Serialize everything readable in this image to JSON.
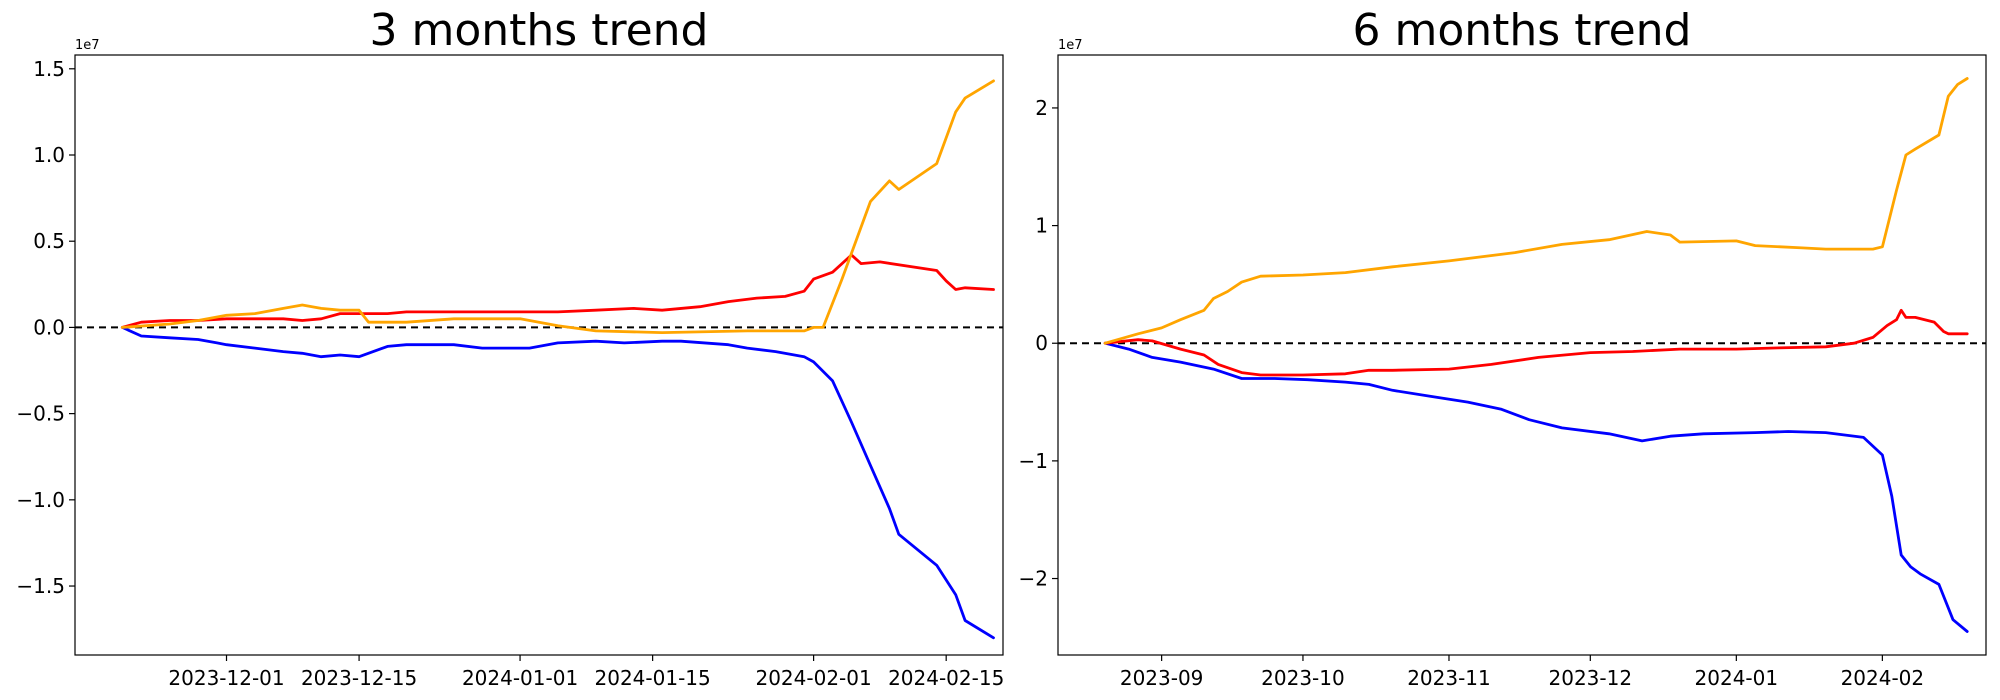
{
  "chart_data": [
    {
      "type": "line",
      "title": "3 months trend",
      "xlabel": "",
      "ylabel": "",
      "y_offset_label": "1e7",
      "x_axis": "date",
      "xlim": [
        "2023-11-15",
        "2024-02-21"
      ],
      "ylim": [
        -1.9,
        1.58
      ],
      "y_unit_multiplier": 10000000,
      "xticks": [
        "2023-12-01",
        "2023-12-15",
        "2024-01-01",
        "2024-01-15",
        "2024-02-01",
        "2024-02-15"
      ],
      "yticks": [
        -1.5,
        -1.0,
        -0.5,
        0.0,
        0.5,
        1.0,
        1.5
      ],
      "ytick_labels": [
        "−1.5",
        "−1.0",
        "−0.5",
        "0.0",
        "0.5",
        "1.0",
        "1.5"
      ],
      "reference_line": {
        "y": 0,
        "style": "dashed",
        "color": "#000000"
      },
      "grid": false,
      "series": [
        {
          "color": "#0000ff",
          "x": [
            "2023-11-20",
            "2023-11-22",
            "2023-11-25",
            "2023-11-28",
            "2023-11-30",
            "2023-12-01",
            "2023-12-04",
            "2023-12-07",
            "2023-12-09",
            "2023-12-11",
            "2023-12-13",
            "2023-12-15",
            "2023-12-18",
            "2023-12-20",
            "2023-12-22",
            "2023-12-25",
            "2023-12-28",
            "2023-12-30",
            "2024-01-02",
            "2024-01-05",
            "2024-01-09",
            "2024-01-12",
            "2024-01-16",
            "2024-01-18",
            "2024-01-23",
            "2024-01-25",
            "2024-01-28",
            "2024-01-31",
            "2024-02-01",
            "2024-02-03",
            "2024-02-05",
            "2024-02-07",
            "2024-02-09",
            "2024-02-10",
            "2024-02-14",
            "2024-02-16",
            "2024-02-17",
            "2024-02-20"
          ],
          "y": [
            0.0,
            -0.05,
            -0.06,
            -0.07,
            -0.09,
            -0.1,
            -0.12,
            -0.14,
            -0.15,
            -0.17,
            -0.16,
            -0.17,
            -0.11,
            -0.1,
            -0.1,
            -0.1,
            -0.12,
            -0.12,
            -0.12,
            -0.09,
            -0.08,
            -0.09,
            -0.08,
            -0.08,
            -0.1,
            -0.12,
            -0.14,
            -0.17,
            -0.2,
            -0.31,
            -0.55,
            -0.8,
            -1.05,
            -1.2,
            -1.38,
            -1.55,
            -1.7,
            -1.8
          ]
        },
        {
          "color": "#ff0000",
          "x": [
            "2023-11-20",
            "2023-11-22",
            "2023-11-25",
            "2023-11-28",
            "2023-12-01",
            "2023-12-04",
            "2023-12-07",
            "2023-12-09",
            "2023-12-11",
            "2023-12-13",
            "2023-12-15",
            "2023-12-18",
            "2023-12-20",
            "2023-12-25",
            "2024-01-01",
            "2024-01-05",
            "2024-01-09",
            "2024-01-13",
            "2024-01-16",
            "2024-01-20",
            "2024-01-23",
            "2024-01-26",
            "2024-01-29",
            "2024-01-31",
            "2024-02-01",
            "2024-02-03",
            "2024-02-05",
            "2024-02-06",
            "2024-02-08",
            "2024-02-14",
            "2024-02-15",
            "2024-02-16",
            "2024-02-17",
            "2024-02-20"
          ],
          "y": [
            0.0,
            0.03,
            0.04,
            0.04,
            0.05,
            0.05,
            0.05,
            0.04,
            0.05,
            0.08,
            0.08,
            0.08,
            0.09,
            0.09,
            0.09,
            0.09,
            0.1,
            0.11,
            0.1,
            0.12,
            0.15,
            0.17,
            0.18,
            0.21,
            0.28,
            0.32,
            0.42,
            0.37,
            0.38,
            0.33,
            0.27,
            0.22,
            0.23,
            0.22
          ]
        },
        {
          "color": "#ffa500",
          "x": [
            "2023-11-20",
            "2023-11-25",
            "2023-11-28",
            "2023-12-01",
            "2023-12-04",
            "2023-12-07",
            "2023-12-09",
            "2023-12-11",
            "2023-12-13",
            "2023-12-15",
            "2023-12-16",
            "2023-12-20",
            "2023-12-25",
            "2024-01-01",
            "2024-01-05",
            "2024-01-09",
            "2024-01-16",
            "2024-01-25",
            "2024-01-31",
            "2024-02-01",
            "2024-02-02",
            "2024-02-04",
            "2024-02-07",
            "2024-02-09",
            "2024-02-10",
            "2024-02-14",
            "2024-02-16",
            "2024-02-17",
            "2024-02-20"
          ],
          "y": [
            0.0,
            0.02,
            0.04,
            0.07,
            0.08,
            0.11,
            0.13,
            0.11,
            0.1,
            0.1,
            0.03,
            0.03,
            0.05,
            0.05,
            0.01,
            -0.02,
            -0.03,
            -0.02,
            -0.02,
            0.0,
            0.0,
            0.28,
            0.73,
            0.85,
            0.8,
            0.95,
            1.25,
            1.33,
            1.43
          ]
        }
      ]
    },
    {
      "type": "line",
      "title": "6 months trend",
      "xlabel": "",
      "ylabel": "",
      "y_offset_label": "1e7",
      "x_axis": "date",
      "xlim": [
        "2023-08-10",
        "2024-02-23"
      ],
      "ylim": [
        -2.65,
        2.45
      ],
      "y_unit_multiplier": 10000000,
      "xticks": [
        "2023-09-01",
        "2023-10-01",
        "2023-11-01",
        "2023-12-01",
        "2024-01-01",
        "2024-02-01"
      ],
      "xtick_labels": [
        "2023-09",
        "2023-10",
        "2023-11",
        "2023-12",
        "2024-01",
        "2024-02"
      ],
      "yticks": [
        -2,
        -1,
        0,
        1,
        2
      ],
      "ytick_labels": [
        "−2",
        "−1",
        "0",
        "1",
        "2"
      ],
      "reference_line": {
        "y": 0,
        "style": "dashed",
        "color": "#000000"
      },
      "grid": false,
      "series": [
        {
          "color": "#0000ff",
          "x": [
            "2023-08-20",
            "2023-08-25",
            "2023-08-30",
            "2023-09-05",
            "2023-09-12",
            "2023-09-18",
            "2023-09-25",
            "2023-10-02",
            "2023-10-10",
            "2023-10-15",
            "2023-10-20",
            "2023-10-28",
            "2023-11-05",
            "2023-11-12",
            "2023-11-18",
            "2023-11-25",
            "2023-12-05",
            "2023-12-12",
            "2023-12-18",
            "2023-12-25",
            "2024-01-05",
            "2024-01-12",
            "2024-01-20",
            "2024-01-28",
            "2024-02-01",
            "2024-02-03",
            "2024-02-05",
            "2024-02-07",
            "2024-02-09",
            "2024-02-13",
            "2024-02-16",
            "2024-02-19"
          ],
          "y": [
            0.0,
            -0.05,
            -0.12,
            -0.16,
            -0.22,
            -0.3,
            -0.3,
            -0.31,
            -0.33,
            -0.35,
            -0.4,
            -0.45,
            -0.5,
            -0.56,
            -0.65,
            -0.72,
            -0.77,
            -0.83,
            -0.79,
            -0.77,
            -0.76,
            -0.75,
            -0.76,
            -0.8,
            -0.95,
            -1.3,
            -1.8,
            -1.9,
            -1.96,
            -2.05,
            -2.35,
            -2.45
          ]
        },
        {
          "color": "#ff0000",
          "x": [
            "2023-08-20",
            "2023-08-27",
            "2023-08-30",
            "2023-09-05",
            "2023-09-10",
            "2023-09-13",
            "2023-09-18",
            "2023-09-22",
            "2023-10-01",
            "2023-10-10",
            "2023-10-15",
            "2023-10-20",
            "2023-11-01",
            "2023-11-10",
            "2023-11-20",
            "2023-12-01",
            "2023-12-10",
            "2023-12-20",
            "2024-01-01",
            "2024-01-10",
            "2024-01-20",
            "2024-01-26",
            "2024-01-30",
            "2024-02-02",
            "2024-02-04",
            "2024-02-05",
            "2024-02-06",
            "2024-02-08",
            "2024-02-12",
            "2024-02-14",
            "2024-02-15",
            "2024-02-19"
          ],
          "y": [
            0.0,
            0.03,
            0.02,
            -0.05,
            -0.1,
            -0.18,
            -0.25,
            -0.27,
            -0.27,
            -0.26,
            -0.23,
            -0.23,
            -0.22,
            -0.18,
            -0.12,
            -0.08,
            -0.07,
            -0.05,
            -0.05,
            -0.04,
            -0.03,
            0.0,
            0.05,
            0.15,
            0.2,
            0.28,
            0.22,
            0.22,
            0.18,
            0.1,
            0.08,
            0.08
          ]
        },
        {
          "color": "#ffa500",
          "x": [
            "2023-08-20",
            "2023-08-27",
            "2023-09-01",
            "2023-09-05",
            "2023-09-10",
            "2023-09-12",
            "2023-09-15",
            "2023-09-18",
            "2023-09-22",
            "2023-10-01",
            "2023-10-10",
            "2023-10-20",
            "2023-11-01",
            "2023-11-15",
            "2023-11-25",
            "2023-12-05",
            "2023-12-13",
            "2023-12-18",
            "2023-12-20",
            "2024-01-01",
            "2024-01-05",
            "2024-01-15",
            "2024-01-20",
            "2024-01-30",
            "2024-02-01",
            "2024-02-04",
            "2024-02-06",
            "2024-02-08",
            "2024-02-13",
            "2024-02-15",
            "2024-02-17",
            "2024-02-19"
          ],
          "y": [
            0.0,
            0.08,
            0.13,
            0.2,
            0.28,
            0.38,
            0.44,
            0.52,
            0.57,
            0.58,
            0.6,
            0.65,
            0.7,
            0.77,
            0.84,
            0.88,
            0.95,
            0.92,
            0.86,
            0.87,
            0.83,
            0.81,
            0.8,
            0.8,
            0.82,
            1.3,
            1.6,
            1.65,
            1.77,
            2.1,
            2.2,
            2.25
          ]
        }
      ]
    }
  ]
}
